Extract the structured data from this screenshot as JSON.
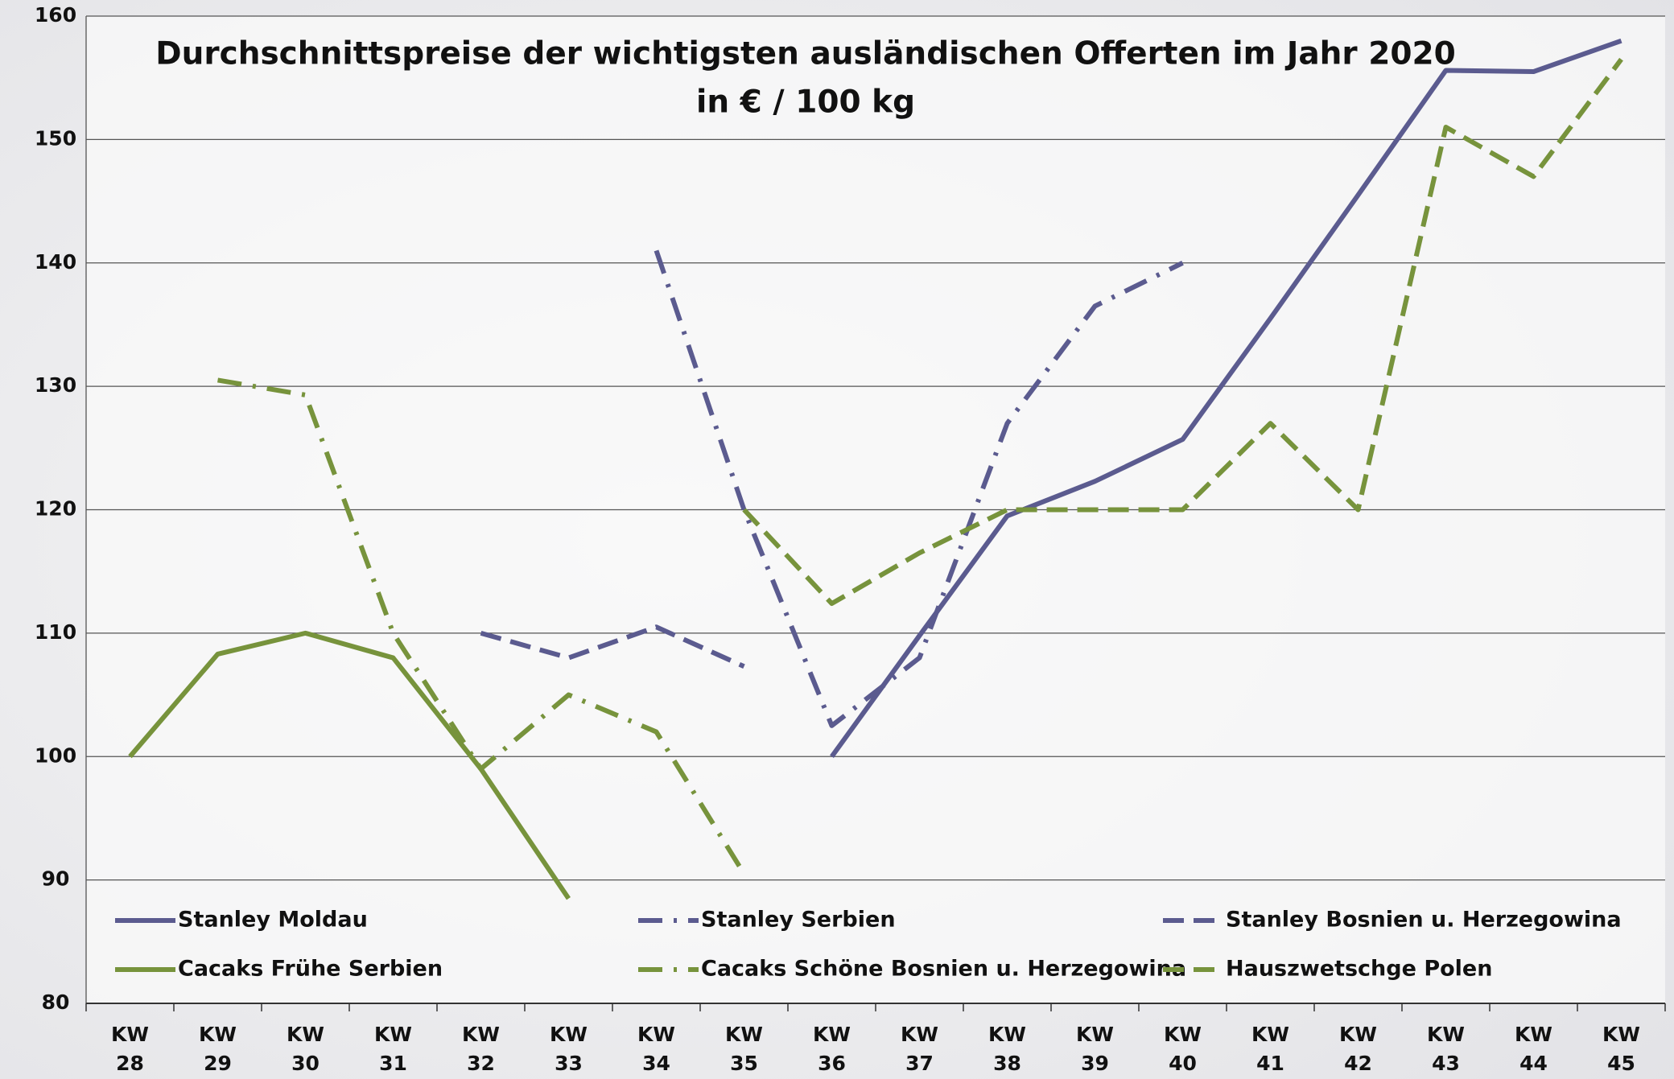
{
  "chart_data": {
    "type": "line",
    "title": "Durchschnittspreise der wichtigsten ausländischen Offerten im Jahr 2020",
    "subtitle": "in € / 100 kg",
    "categories": [
      "KW 28",
      "KW 29",
      "KW 30",
      "KW 31",
      "KW 32",
      "KW 33",
      "KW 34",
      "KW 35",
      "KW 36",
      "KW 37",
      "KW 38",
      "KW 39",
      "KW 40",
      "KW 41",
      "KW 42",
      "KW 43",
      "KW 44",
      "KW 45"
    ],
    "series": [
      {
        "name": "Stanley Moldau",
        "color": "#5b5b8f",
        "style": "solid",
        "values": [
          null,
          null,
          null,
          null,
          null,
          null,
          null,
          null,
          100,
          109.8,
          119.5,
          122.3,
          125.7,
          135.5,
          145.5,
          155.6,
          155.5,
          158
        ]
      },
      {
        "name": "Stanley Serbien",
        "color": "#5b5b8f",
        "style": "dashdot",
        "values": [
          null,
          null,
          null,
          null,
          null,
          null,
          141,
          120,
          102.5,
          108,
          127,
          136.5,
          140,
          null,
          null,
          null,
          null,
          null
        ]
      },
      {
        "name": "Stanley Bosnien u. Herzegowina",
        "color": "#5b5b8f",
        "style": "dash",
        "values": [
          null,
          null,
          null,
          null,
          110,
          108,
          110.5,
          107.3,
          null,
          null,
          null,
          null,
          null,
          null,
          null,
          null,
          null,
          null
        ]
      },
      {
        "name": "Cacaks Frühe Serbien",
        "color": "#77933c",
        "style": "solid",
        "values": [
          100,
          108.3,
          110,
          108,
          99,
          88.5,
          null,
          null,
          null,
          null,
          null,
          null,
          null,
          null,
          null,
          null,
          null,
          null
        ]
      },
      {
        "name": "Cacaks Schöne Bosnien u. Herzegowina",
        "color": "#77933c",
        "style": "dashdot",
        "values": [
          null,
          130.5,
          129.3,
          110,
          99,
          105,
          102,
          90.5,
          null,
          null,
          null,
          null,
          null,
          null,
          null,
          null,
          null,
          null
        ]
      },
      {
        "name": "Hauszwetschge Polen",
        "color": "#77933c",
        "style": "dash",
        "values": [
          null,
          null,
          null,
          null,
          null,
          null,
          null,
          120,
          112.4,
          116.5,
          120,
          120,
          120,
          127,
          120,
          151,
          147,
          156.5
        ]
      }
    ],
    "ylim": [
      80,
      160
    ],
    "yticks": [
      80,
      90,
      100,
      110,
      120,
      130,
      140,
      150,
      160
    ],
    "grid": true,
    "legend": "bottom"
  }
}
